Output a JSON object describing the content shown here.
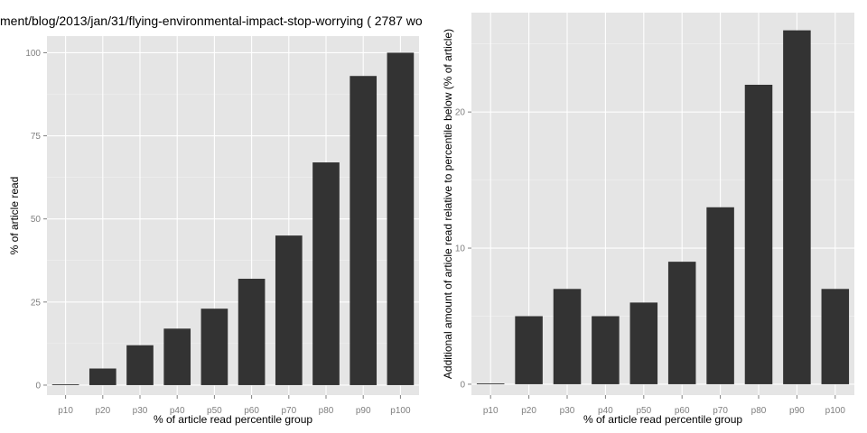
{
  "chart_data": [
    {
      "type": "bar",
      "title": "ment/blog/2013/jan/31/flying-environmental-impact-stop-worrying ( 2787 wo",
      "xlabel": "% of article read percentile group",
      "ylabel": "% of article read",
      "categories": [
        "p10",
        "p20",
        "p30",
        "p40",
        "p50",
        "p60",
        "p70",
        "p80",
        "p90",
        "p100"
      ],
      "values": [
        0,
        5,
        12,
        17,
        23,
        32,
        45,
        67,
        93,
        100
      ],
      "yticks": [
        0,
        25,
        50,
        75,
        100
      ],
      "ylim": [
        -3,
        105
      ],
      "grid": true,
      "bar_color": "#333333",
      "panel_color": "#e5e5e5"
    },
    {
      "type": "bar",
      "title": "",
      "xlabel": "% of article read percentile group",
      "ylabel": "Additional amount of article read relative to percentile below (% of article)",
      "categories": [
        "p10",
        "p20",
        "p30",
        "p40",
        "p50",
        "p60",
        "p70",
        "p80",
        "p90",
        "p100"
      ],
      "values": [
        0,
        5,
        7,
        5,
        6,
        9,
        13,
        22,
        26,
        7
      ],
      "yticks": [
        0,
        10,
        20
      ],
      "ylim": [
        -0.8,
        27.3
      ],
      "grid": true,
      "bar_color": "#333333",
      "panel_color": "#e5e5e5"
    }
  ]
}
